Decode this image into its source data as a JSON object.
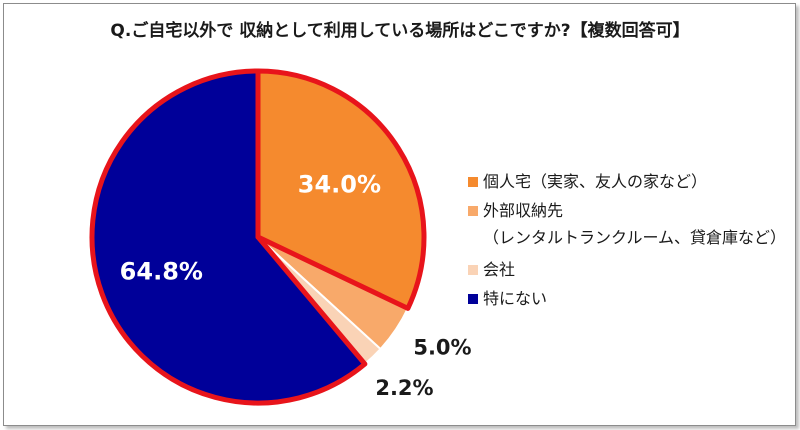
{
  "title": "Q.ご自宅以外で 収納として利用している場所はどこですか?【複数回答可】",
  "chart_data": {
    "type": "pie",
    "title": "Q.ご自宅以外で 収納として利用している場所はどこですか?【複数回答可】",
    "categories": [
      "個人宅（実家、友人の家など）",
      "外部収納先\n（レンタルトランクルーム、貸倉庫など）",
      "会社",
      "特にない"
    ],
    "values": [
      34.0,
      5.0,
      2.2,
      64.8
    ],
    "value_labels": [
      "34.0%",
      "5.0%",
      "2.2%",
      "64.8%"
    ],
    "colors": [
      "#F58A2E",
      "#F8A96A",
      "#FAD3B6",
      "#000099"
    ],
    "highlight_border_color": "#E8141B",
    "legend_position": "right"
  }
}
